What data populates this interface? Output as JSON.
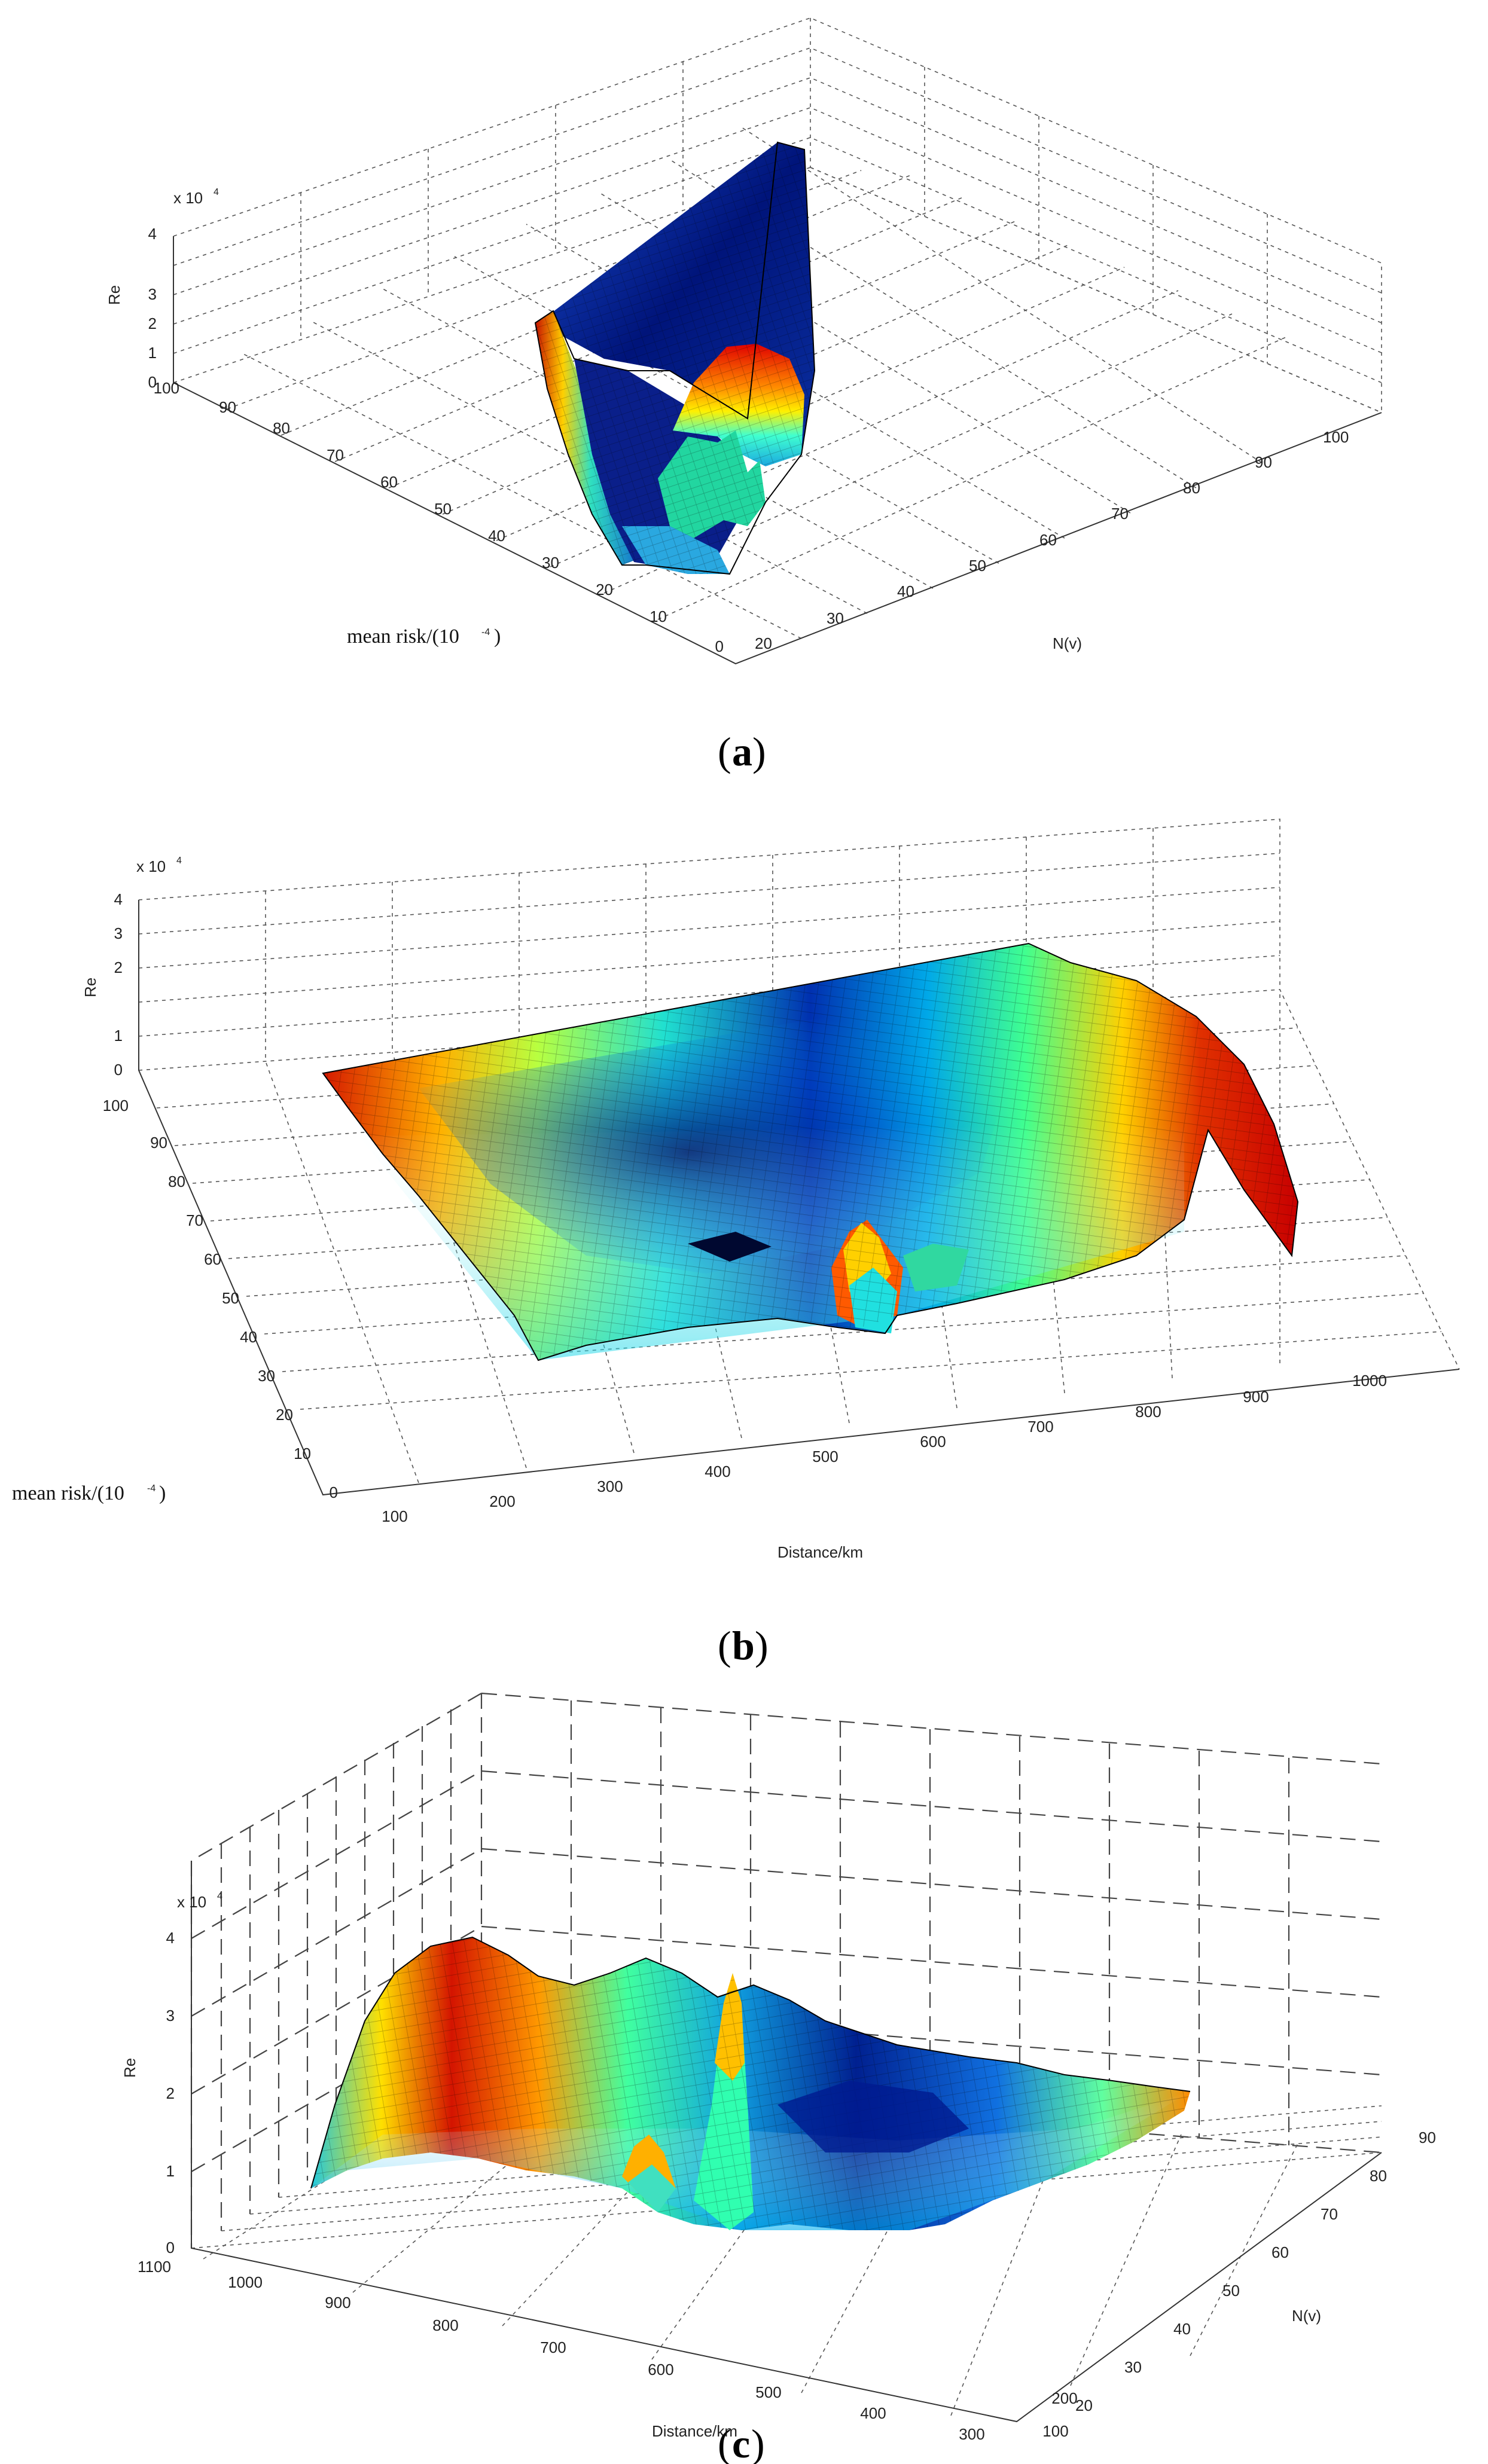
{
  "chart_data": [
    {
      "type": "surface3d",
      "caption": "a",
      "zlabel": "Re",
      "zscale": "x 10",
      "zscale_exp": "4",
      "zticks": [
        "0",
        "1",
        "2",
        "3",
        "4"
      ],
      "ylabel": "mean risk/(10",
      "ylabel_exp": "-4",
      "ylabel_close": ")",
      "yticks": [
        "0",
        "10",
        "20",
        "30",
        "40",
        "50",
        "60",
        "70",
        "80",
        "90",
        "100"
      ],
      "xlabel": "N(v)",
      "xticks": [
        "20",
        "30",
        "40",
        "50",
        "60",
        "70",
        "80",
        "90",
        "100"
      ],
      "colormap": [
        "#00008f",
        "#0050ff",
        "#00ffff",
        "#7fff7f",
        "#ffff00",
        "#ff6a00",
        "#8f0000"
      ]
    },
    {
      "type": "surface3d",
      "caption": "b",
      "zlabel": "Re",
      "zscale": "x 10",
      "zscale_exp": "4",
      "zticks": [
        "0",
        "1",
        "2",
        "3",
        "4"
      ],
      "ylabel": "mean risk/(10",
      "ylabel_exp": "-4",
      "ylabel_close": ")",
      "yticks": [
        "0",
        "10",
        "20",
        "30",
        "40",
        "50",
        "60",
        "70",
        "80",
        "90",
        "100"
      ],
      "xlabel": "Distance/km",
      "xticks": [
        "100",
        "200",
        "300",
        "400",
        "500",
        "600",
        "700",
        "800",
        "900",
        "1000"
      ],
      "colormap": [
        "#00008f",
        "#0050ff",
        "#00ffff",
        "#7fff7f",
        "#ffff00",
        "#ff6a00",
        "#8f0000"
      ]
    },
    {
      "type": "surface3d",
      "caption": "c",
      "zlabel": "Re",
      "zscale": "x 10",
      "zscale_exp": "4",
      "zticks": [
        "0",
        "1",
        "2",
        "3",
        "4"
      ],
      "xlabel": "Distance/km",
      "xticks": [
        "1100",
        "1000",
        "900",
        "800",
        "700",
        "600",
        "500",
        "400",
        "300",
        "200",
        "100"
      ],
      "ylabel": "N(v)",
      "yticks": [
        "20",
        "30",
        "40",
        "50",
        "60",
        "70",
        "80",
        "90"
      ],
      "colormap": [
        "#00008f",
        "#0050ff",
        "#00ffff",
        "#7fff7f",
        "#ffff00",
        "#ff6a00",
        "#8f0000"
      ]
    }
  ]
}
